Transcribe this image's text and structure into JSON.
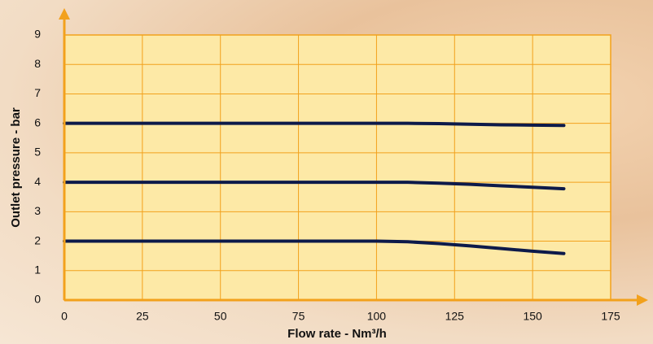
{
  "chart_data": {
    "type": "line",
    "xlabel": "Flow rate - Nm³/h",
    "ylabel": "Outlet pressure - bar",
    "x": [
      0,
      25,
      50,
      75,
      100,
      110,
      120,
      130,
      140,
      150,
      160
    ],
    "series": [
      {
        "color": "#0d1a4a",
        "values": [
          6,
          6,
          6,
          6,
          6,
          6,
          5.99,
          5.97,
          5.95,
          5.94,
          5.93
        ]
      },
      {
        "color": "#0d1a4a",
        "values": [
          4,
          4,
          4,
          4,
          4,
          4,
          3.97,
          3.93,
          3.88,
          3.83,
          3.78
        ]
      },
      {
        "color": "#0d1a4a",
        "values": [
          2,
          2,
          2,
          2,
          2,
          1.98,
          1.92,
          1.84,
          1.75,
          1.66,
          1.58
        ]
      }
    ],
    "xlim": [
      0,
      175
    ],
    "xticks": [
      0,
      25,
      50,
      75,
      100,
      125,
      150,
      175
    ],
    "ylim": [
      0,
      9
    ],
    "yticks": [
      0,
      1,
      2,
      3,
      4,
      5,
      6,
      7,
      8,
      9
    ],
    "grid": true,
    "grid_color": "#f2a11c"
  }
}
